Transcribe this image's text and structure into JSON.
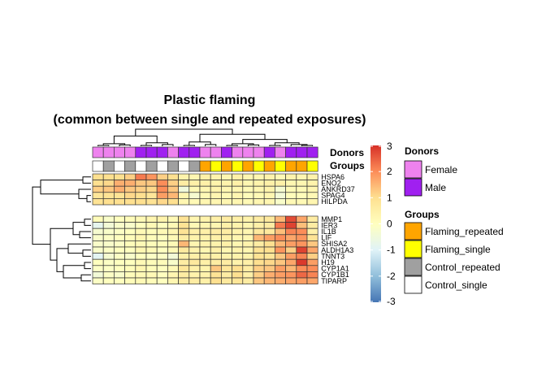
{
  "chart_data": {
    "type": "heatmap",
    "title_lines": [
      "Plastic flaming",
      "(common between single and repeated exposures)"
    ],
    "columns": 21,
    "row_groups": [
      [
        "HSPA6",
        "ENO2",
        "ANKRD37",
        "SPAG4",
        "HILPDA"
      ],
      [
        "MMP1",
        "IER3",
        "IL1B",
        "LIF",
        "SHISA2",
        "ALDH1A3",
        "TNNT3",
        "H19",
        "CYP1A1",
        "CYP1B1",
        "TIPARP"
      ]
    ],
    "rows": [
      "HSPA6",
      "ENO2",
      "ANKRD37",
      "SPAG4",
      "HILPDA",
      "MMP1",
      "IER3",
      "IL1B",
      "LIF",
      "SHISA2",
      "ALDH1A3",
      "TNNT3",
      "H19",
      "CYP1A1",
      "CYP1B1",
      "TIPARP"
    ],
    "values": [
      [
        1.0,
        1.0,
        1.0,
        1.2,
        2.2,
        1.9,
        1.2,
        1.0,
        0.4,
        0.3,
        0.5,
        0.4,
        0.3,
        0.5,
        0.3,
        0.3,
        0.4,
        0.2,
        0.4,
        0.3,
        0.4
      ],
      [
        1.0,
        1.1,
        1.6,
        1.6,
        1.3,
        1.3,
        2.0,
        1.2,
        0.6,
        0.5,
        0.5,
        0.4,
        0.4,
        0.5,
        0.3,
        0.4,
        0.5,
        0.5,
        0.3,
        0.3,
        0.4
      ],
      [
        1.2,
        1.3,
        1.6,
        1.3,
        1.2,
        1.1,
        2.0,
        1.3,
        -0.5,
        0.2,
        0.3,
        0.4,
        0.3,
        0.3,
        0.2,
        0.3,
        0.4,
        -0.3,
        0.2,
        0.2,
        0.3
      ],
      [
        0.8,
        0.9,
        0.9,
        1.1,
        1.0,
        0.8,
        1.8,
        1.5,
        0.3,
        -0.3,
        0.2,
        0.3,
        0.2,
        0.3,
        0.1,
        0.2,
        0.3,
        -0.4,
        0.1,
        0.1,
        0.2
      ],
      [
        0.9,
        1.0,
        1.0,
        1.0,
        1.0,
        0.9,
        1.1,
        1.0,
        0.3,
        0.2,
        0.3,
        0.3,
        0.3,
        0.3,
        0.2,
        0.3,
        0.3,
        -0.2,
        0.2,
        0.2,
        0.3
      ],
      [
        0.1,
        -0.2,
        0.0,
        0.1,
        0.2,
        0.3,
        0.4,
        0.2,
        0.9,
        0.3,
        0.4,
        0.5,
        0.6,
        0.5,
        0.4,
        0.6,
        0.7,
        1.5,
        2.7,
        1.7,
        0.6
      ],
      [
        -0.8,
        -0.4,
        -0.2,
        -0.2,
        0.0,
        0.2,
        0.0,
        0.2,
        0.9,
        0.2,
        0.3,
        0.3,
        0.5,
        0.4,
        0.3,
        0.5,
        0.6,
        2.2,
        2.8,
        1.4,
        0.6
      ],
      [
        -0.3,
        -0.2,
        -0.1,
        0.0,
        0.2,
        0.1,
        0.2,
        0.3,
        0.9,
        0.5,
        0.5,
        0.6,
        0.6,
        0.4,
        0.3,
        0.7,
        0.7,
        1.4,
        2.1,
        2.0,
        0.5
      ],
      [
        -0.2,
        -0.1,
        0.0,
        0.1,
        0.3,
        0.1,
        0.0,
        0.2,
        0.6,
        0.4,
        0.4,
        0.5,
        0.5,
        0.3,
        0.3,
        1.5,
        1.8,
        2.0,
        1.7,
        1.9,
        0.9
      ],
      [
        -0.2,
        -0.2,
        -0.1,
        0.1,
        0.2,
        0.1,
        0.1,
        0.2,
        1.5,
        0.3,
        0.4,
        0.4,
        0.5,
        0.3,
        0.4,
        0.6,
        1.0,
        1.5,
        1.8,
        1.9,
        1.3
      ],
      [
        -0.2,
        -0.1,
        0.0,
        0.0,
        0.3,
        0.2,
        0.0,
        0.2,
        0.7,
        0.4,
        0.3,
        0.5,
        0.3,
        0.4,
        0.3,
        0.9,
        1.0,
        1.9,
        1.2,
        2.8,
        1.7
      ],
      [
        -0.9,
        -0.3,
        -0.1,
        -0.2,
        0.0,
        -0.1,
        -0.1,
        -0.4,
        0.5,
        0.5,
        0.5,
        0.5,
        0.4,
        0.4,
        0.4,
        0.9,
        0.8,
        1.3,
        1.8,
        2.1,
        1.2
      ],
      [
        0.0,
        -0.1,
        0.0,
        0.0,
        0.2,
        0.1,
        0.1,
        -0.2,
        0.6,
        0.7,
        0.5,
        0.6,
        0.6,
        0.4,
        0.5,
        1.0,
        1.1,
        1.3,
        1.7,
        2.9,
        1.8
      ],
      [
        -0.1,
        -0.1,
        0.0,
        0.1,
        0.3,
        0.1,
        0.0,
        0.2,
        0.8,
        0.5,
        0.4,
        1.3,
        0.8,
        1.0,
        0.6,
        1.2,
        1.3,
        1.8,
        1.5,
        2.0,
        2.0
      ],
      [
        -0.4,
        -0.1,
        -0.2,
        0.1,
        0.2,
        0.2,
        0.0,
        0.3,
        0.6,
        0.4,
        0.4,
        0.9,
        0.6,
        1.0,
        0.5,
        1.2,
        1.6,
        1.8,
        1.9,
        2.4,
        2.1
      ],
      [
        -0.1,
        0.0,
        0.0,
        0.1,
        0.2,
        0.1,
        0.0,
        0.3,
        0.6,
        0.6,
        0.5,
        1.0,
        0.7,
        0.8,
        0.6,
        1.3,
        1.5,
        1.6,
        1.7,
        1.8,
        1.7
      ]
    ],
    "annotations": {
      "Donors": [
        "Female",
        "Female",
        "Female",
        "Female",
        "Male",
        "Male",
        "Male",
        "Female",
        "Male",
        "Male",
        "Female",
        "Female",
        "Male",
        "Female",
        "Female",
        "Female",
        "Male",
        "Female",
        "Male",
        "Male",
        "Male"
      ],
      "Groups": [
        "Control_single",
        "Control_repeated",
        "Control_single",
        "Control_repeated",
        "Control_single",
        "Control_repeated",
        "Control_single",
        "Control_repeated",
        "Control_single",
        "Control_repeated",
        "Flaming_repeated",
        "Flaming_single",
        "Flaming_repeated",
        "Flaming_single",
        "Flaming_repeated",
        "Flaming_single",
        "Flaming_repeated",
        "Flaming_single",
        "Flaming_repeated",
        "Flaming_repeated",
        "Flaming_single"
      ]
    },
    "annotation_labels": [
      "Donors",
      "Groups"
    ],
    "colorbar": {
      "min": -3,
      "max": 3,
      "ticks": [
        "3",
        "2",
        "1",
        "0",
        "-1",
        "-2",
        "-3"
      ],
      "palette": [
        "#4575B4",
        "#91BFDB",
        "#E0F3F8",
        "#FFFFBF",
        "#FEE090",
        "#FC8D59",
        "#D73027"
      ]
    },
    "legends": [
      {
        "title": "Donors",
        "entries": [
          {
            "label": "Female",
            "color": "#EE82EE"
          },
          {
            "label": "Male",
            "color": "#A020F0"
          }
        ]
      },
      {
        "title": "Groups",
        "entries": [
          {
            "label": "Flaming_repeated",
            "color": "#FFA500"
          },
          {
            "label": "Flaming_single",
            "color": "#FFFF00"
          },
          {
            "label": "Control_repeated",
            "color": "#A0A0A0"
          },
          {
            "label": "Control_single",
            "color": "#FFFFFF"
          }
        ]
      }
    ]
  }
}
